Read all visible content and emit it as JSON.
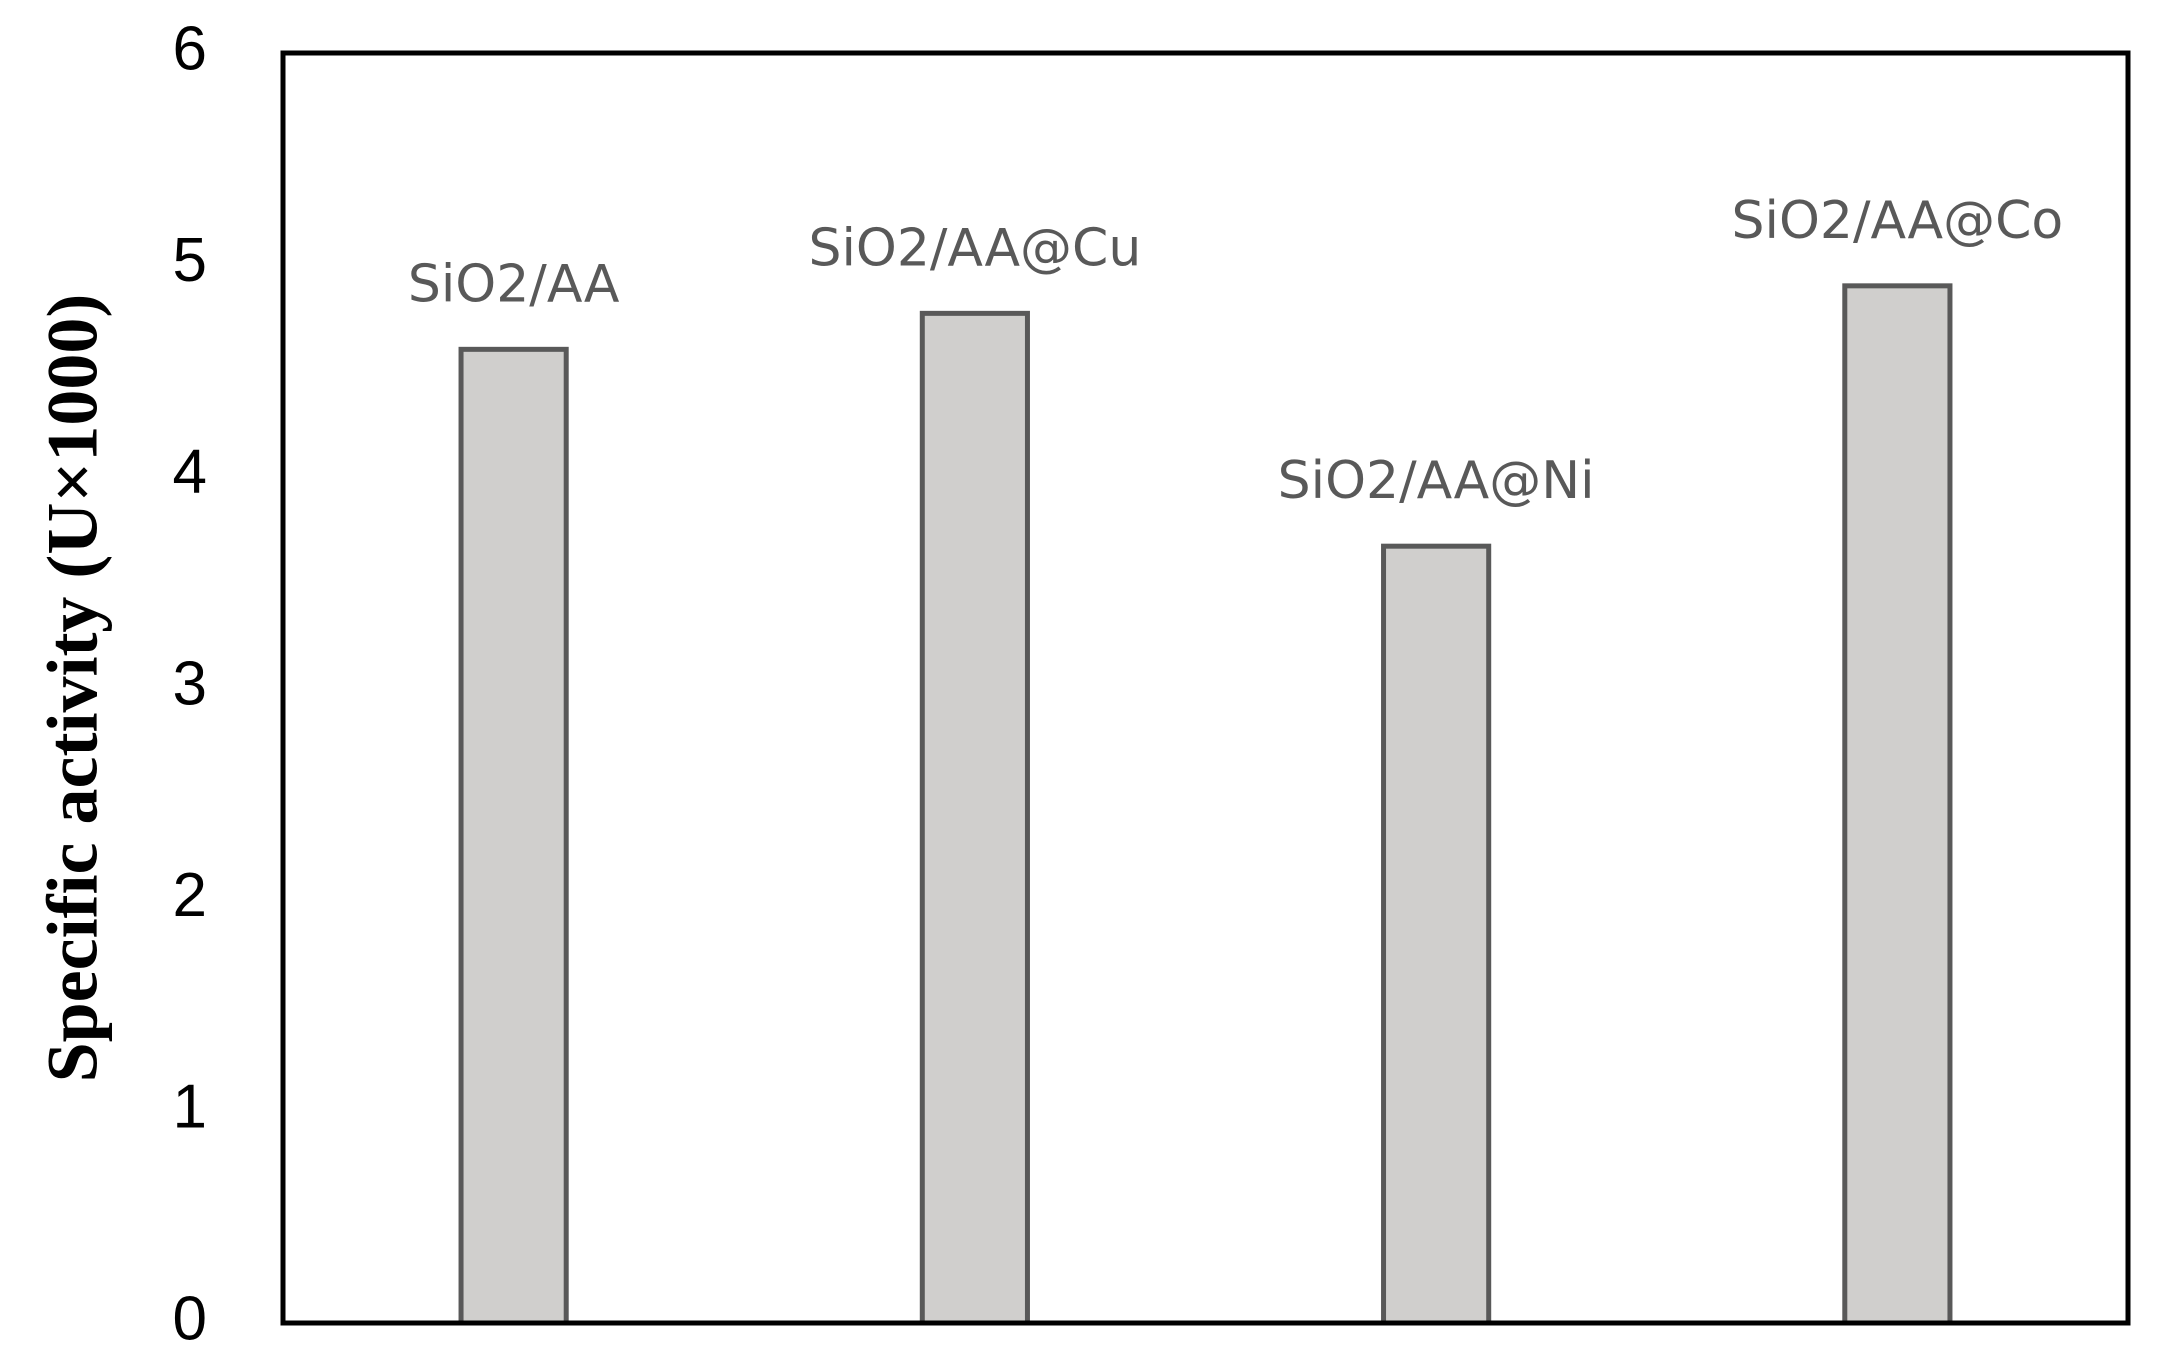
{
  "chart_data": {
    "type": "bar",
    "y_label": "Specific activity (U×1000)",
    "categories": [
      "SiO2/AA",
      "SiO2/AA@Cu",
      "SiO2/AA@Ni",
      "SiO2/AA@Co"
    ],
    "values": [
      4.6,
      4.77,
      3.67,
      4.9
    ],
    "color": "#d0cfcd",
    "edge_color": "#595959",
    "ylim": [
      0,
      6
    ],
    "yticks": [
      0,
      1,
      2,
      3,
      4,
      5,
      6
    ],
    "grid": false
  }
}
